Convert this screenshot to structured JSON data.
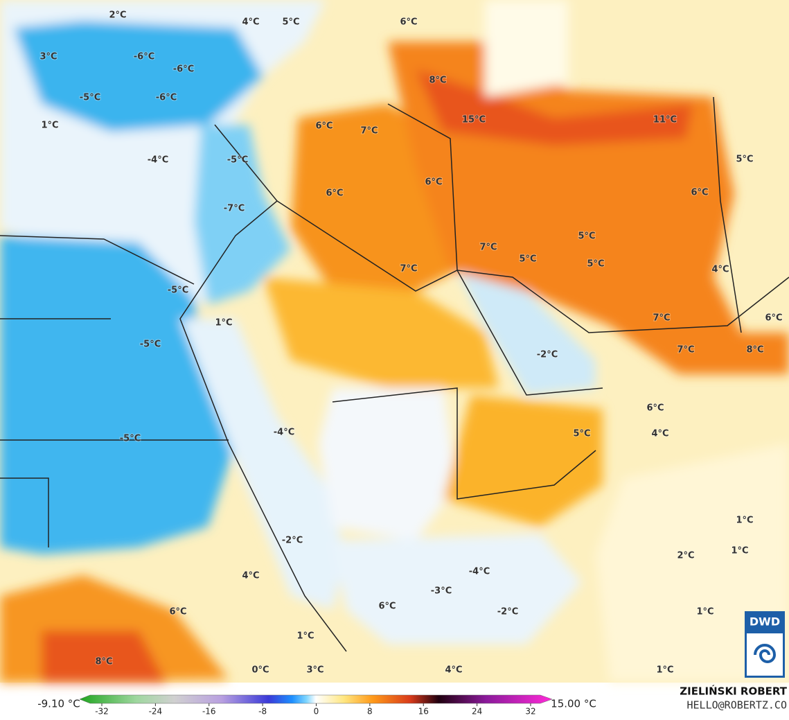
{
  "map_labels": [
    "2°C",
    "4°C",
    "5°C",
    "6°C",
    "3°C",
    "-6°C",
    "-6°C",
    "8°C",
    "-5°C",
    "-6°C",
    "1°C",
    "6°C",
    "7°C",
    "15°C",
    "11°C",
    "-4°C",
    "-5°C",
    "5°C",
    "6°C",
    "6°C",
    "6°C",
    "-7°C",
    "5°C",
    "7°C",
    "5°C",
    "5°C",
    "7°C",
    "4°C",
    "-5°C",
    "7°C",
    "6°C",
    "1°C",
    "-5°C",
    "7°C",
    "8°C",
    "-2°C",
    "6°C",
    "5°C",
    "4°C",
    "-4°C",
    "-5°C",
    "1°C",
    "-2°C",
    "1°C",
    "2°C",
    "-4°C",
    "4°C",
    "-3°C",
    "6°C",
    "-2°C",
    "1°C",
    "6°C",
    "1°C",
    "8°C",
    "0°C",
    "3°C",
    "4°C",
    "1°C"
  ],
  "colorbar": {
    "min_label": "-9.10 °C",
    "max_label": "15.00 °C",
    "ticks": [
      -32,
      -24,
      -16,
      -8,
      0,
      8,
      16,
      24,
      32
    ]
  },
  "credits": {
    "author": "ZIELIŃSKI ROBERT",
    "contact": "HELLO@ROBERTZ.CO",
    "logo": "DWD"
  }
}
